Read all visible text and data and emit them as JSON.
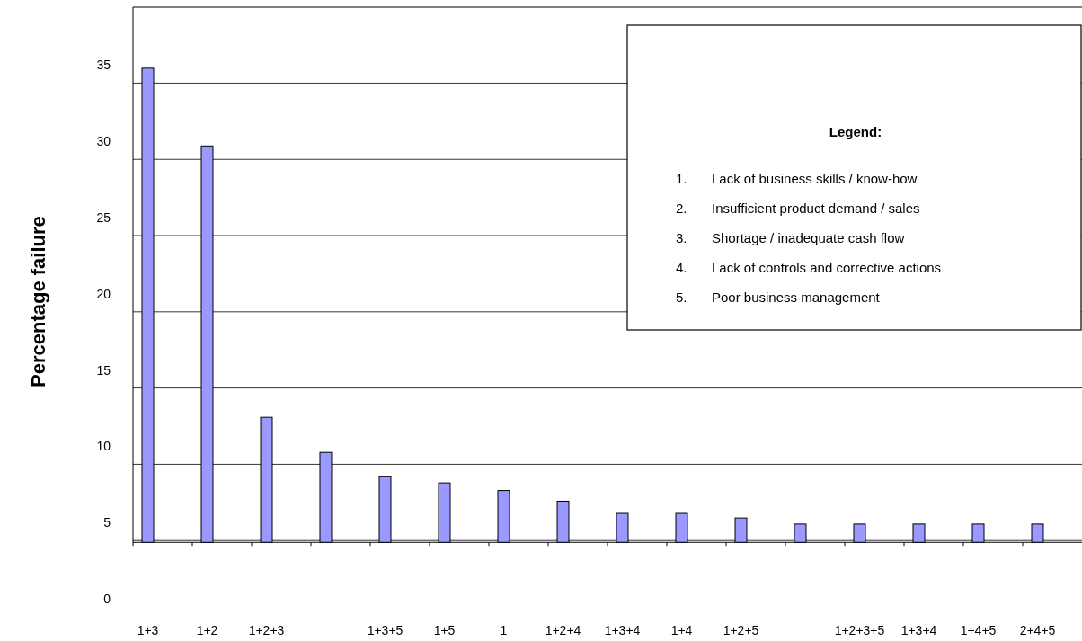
{
  "chart_data": {
    "type": "bar",
    "ylabel": "Percentage failure",
    "categories": [
      "1+3",
      "1+2",
      "1+2+3",
      null,
      "1+3+5",
      "1+5",
      "1",
      "1+2+4",
      "1+3+4",
      "1+4",
      "1+2+5",
      null,
      "1+2+3+5",
      "1+3+4",
      "1+4+5",
      "2+4+5"
    ],
    "values": [
      31.1,
      26.0,
      8.2,
      5.9,
      4.3,
      3.9,
      3.4,
      2.7,
      1.9,
      1.9,
      1.6,
      1.2,
      1.2,
      1.2,
      1.2,
      1.2
    ],
    "base": [
      3.7,
      3.7,
      3.7,
      3.7,
      3.7,
      3.7,
      3.7,
      3.7,
      3.7,
      3.7,
      3.7,
      3.7,
      3.7,
      3.7,
      3.7,
      3.7
    ],
    "color": "#9999ff",
    "ylim": [
      0,
      38.8
    ],
    "yticks": [
      0,
      5,
      10,
      15,
      20,
      25,
      30,
      35
    ],
    "grid": "y",
    "annotations": [
      "Legend:",
      "1.\tLack of business skills / know-how",
      "2.\tInsufficient product demand / sales",
      "3.\tShortage / inadequate cash flow",
      "4.\tLack of controls and corrective actions",
      "5.\tPoor business management"
    ]
  }
}
